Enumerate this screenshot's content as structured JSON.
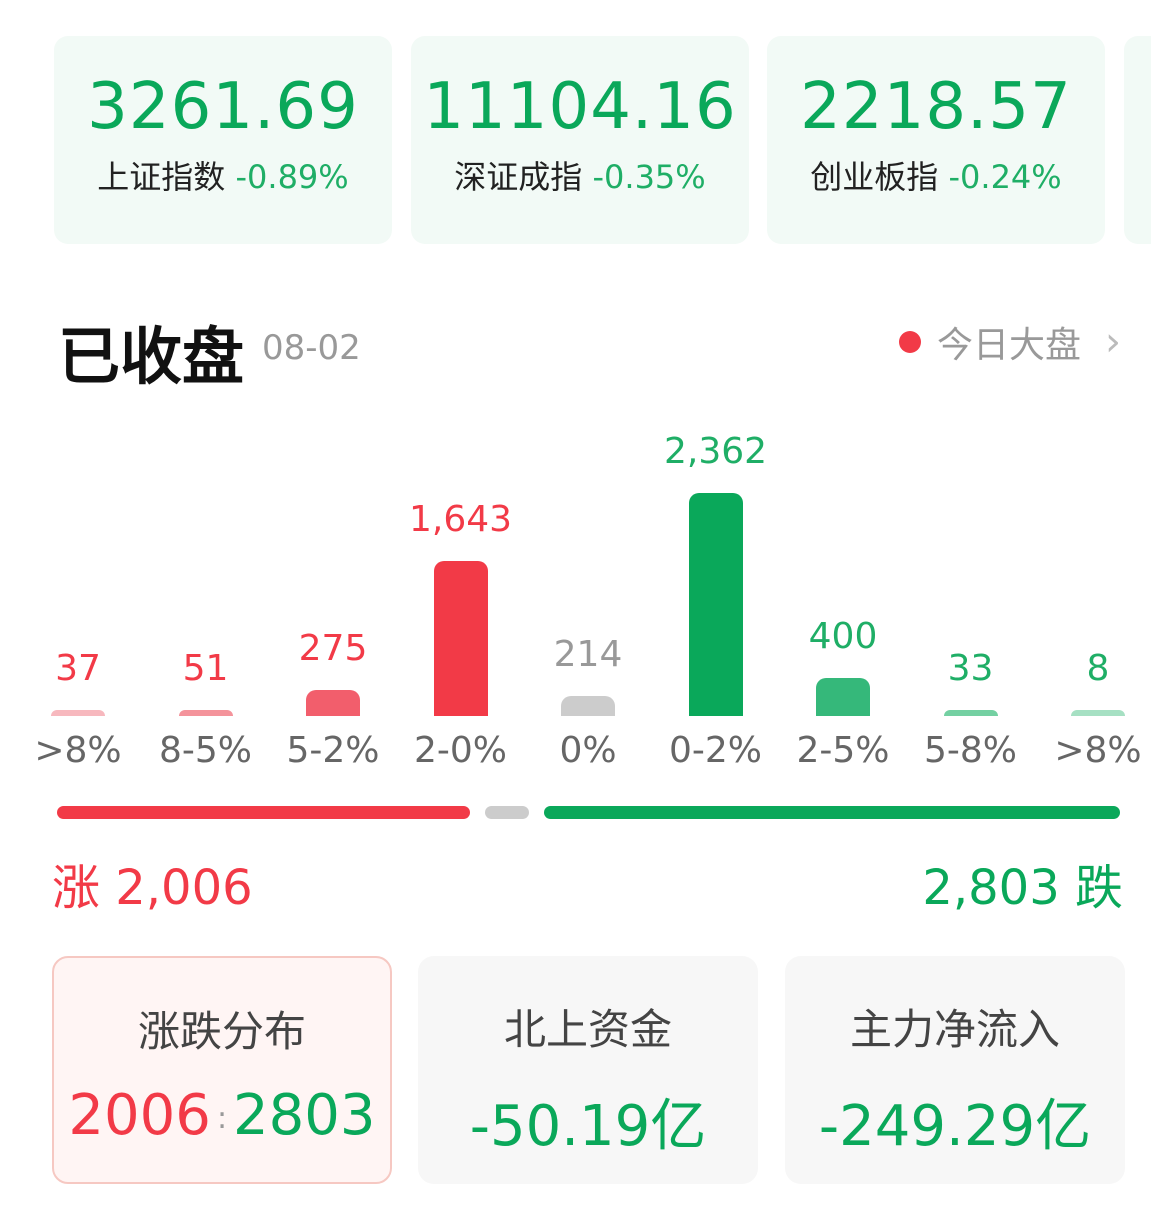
{
  "indices": [
    {
      "value": "3261.69",
      "name": "上证指数",
      "change": "-0.89%"
    },
    {
      "value": "11104.16",
      "name": "深证成指",
      "change": "-0.35%"
    },
    {
      "value": "2218.57",
      "name": "创业板指",
      "change": "-0.24%"
    }
  ],
  "header": {
    "title": "已收盘",
    "date": "08-02",
    "link_label": "今日大盘"
  },
  "chart_data": {
    "type": "bar",
    "categories": [
      ">8%",
      "8-5%",
      "5-2%",
      "2-0%",
      "0%",
      "0-2%",
      "2-5%",
      "5-8%",
      ">8%"
    ],
    "values": [
      37,
      51,
      275,
      1643,
      214,
      2362,
      400,
      33,
      8
    ],
    "labels": [
      "37",
      "51",
      "275",
      "1,643",
      "214",
      "2,362",
      "400",
      "33",
      "8"
    ],
    "colors": [
      "#f7b8be",
      "#f4939b",
      "#f25e6c",
      "#f23a47",
      "#cccccc",
      "#0aa85a",
      "#35b87a",
      "#74d0a2",
      "#a6e0c3"
    ],
    "label_colors": [
      "#f23a47",
      "#f23a47",
      "#f23a47",
      "#f23a47",
      "#999999",
      "#1fae66",
      "#1fae66",
      "#1fae66",
      "#1fae66"
    ]
  },
  "summary": {
    "rise_label": "涨 2,006",
    "fall_label": "2,803 跌",
    "rise": 2006,
    "flat": 214,
    "fall": 2803
  },
  "cards": [
    {
      "label": "涨跌分布",
      "up": "2006",
      "sep": ":",
      "down": "2803"
    },
    {
      "label": "北上资金",
      "value": "-50.19亿"
    },
    {
      "label": "主力净流入",
      "value": "-249.29亿"
    }
  ],
  "colors": {
    "up": "#f23a47",
    "down": "#0aa85a",
    "flat": "#cccccc"
  }
}
